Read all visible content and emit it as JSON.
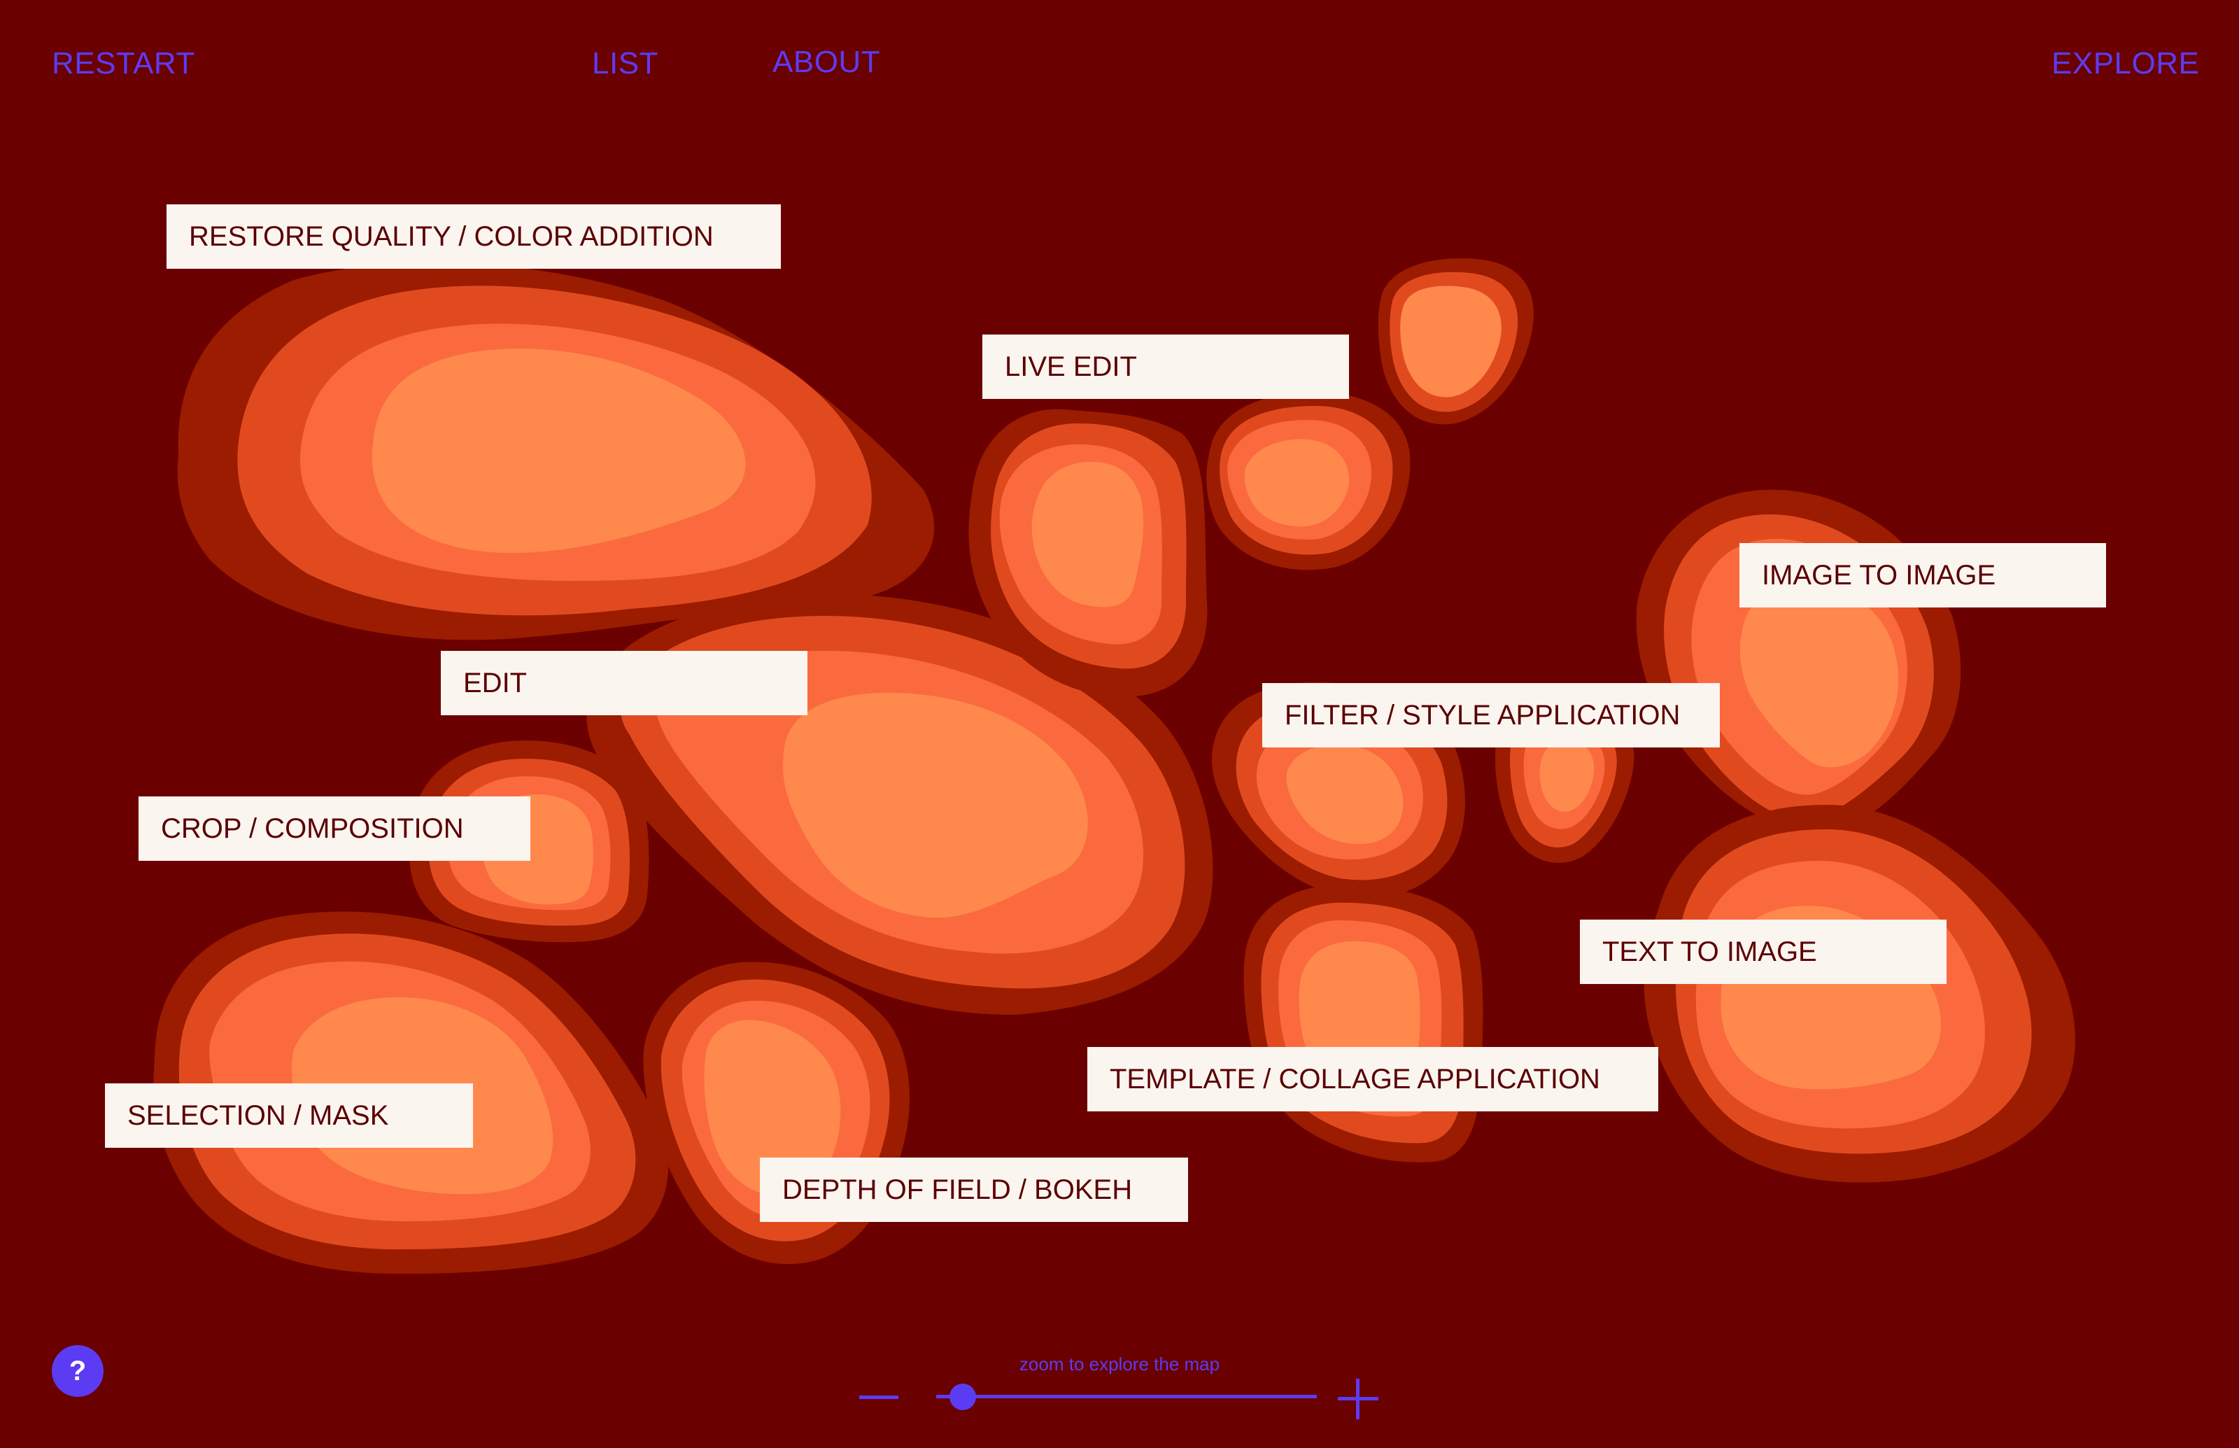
{
  "nav": {
    "restart": "RESTART",
    "list": "LIST",
    "about": "ABOUT",
    "explore": "EXPLORE"
  },
  "labels": {
    "restore": "RESTORE QUALITY / COLOR ADDITION",
    "live_edit": "LIVE EDIT",
    "image_to_image": "IMAGE TO IMAGE",
    "edit": "EDIT",
    "filter_style": "FILTER / STYLE APPLICATION",
    "crop": "CROP / COMPOSITION",
    "text_to_image": "TEXT TO IMAGE",
    "template_collage": "TEMPLATE / COLLAGE APPLICATION",
    "selection_mask": "SELECTION / MASK",
    "depth_of_field": "DEPTH OF FIELD / BOKEH"
  },
  "help": {
    "label": "?",
    "icon": "question-icon"
  },
  "zoom": {
    "hint": "zoom to explore the map",
    "level": 0.07,
    "minus_icon": "minus-icon",
    "plus_icon": "plus-icon"
  },
  "colors": {
    "background": "#6b0000",
    "accent": "#5b3cf2",
    "label_bg": "#fbf5f0",
    "label_text": "#5a0000",
    "blob_rings": [
      "#9b1c00",
      "#e14a1f",
      "#fb6a3e",
      "#ff894d"
    ]
  }
}
